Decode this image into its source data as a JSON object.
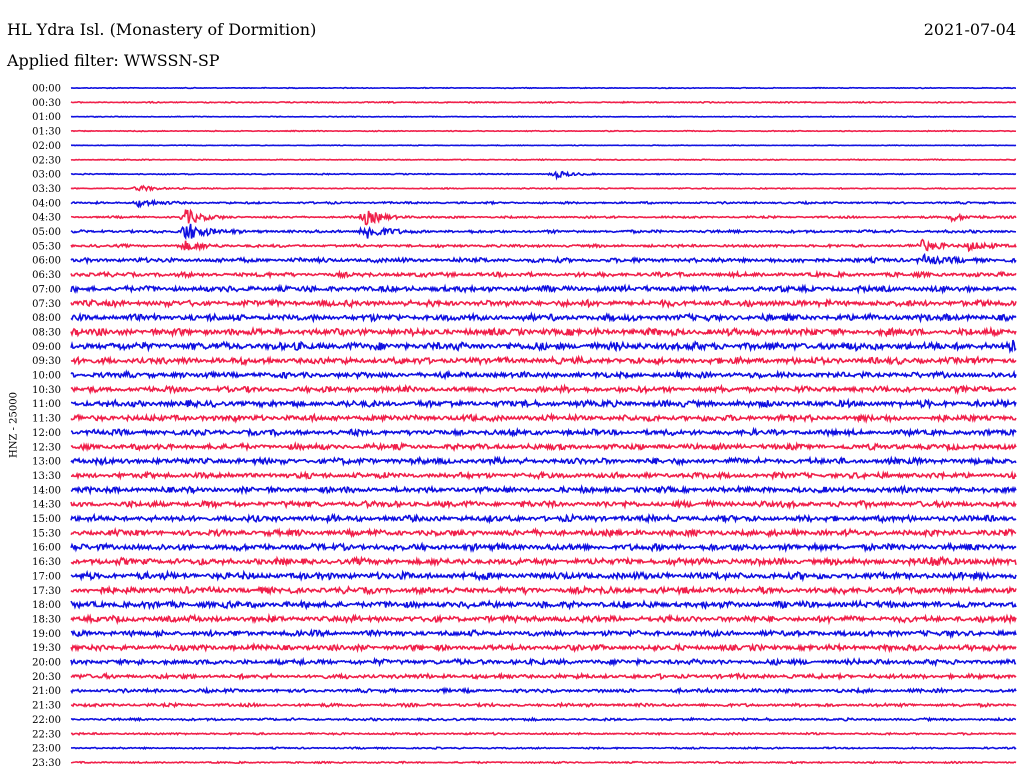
{
  "header": {
    "station": "HL Ydra Isl. (Monastery of Dormition)",
    "date": "2021-07-04",
    "filter": "Applied filter: WWSSN-SP"
  },
  "chart_data": {
    "type": "line",
    "title": "HL Ydra Isl. (Monastery of Dormition)",
    "ylabel": "HNZ - 25000",
    "xlabel": "",
    "row_labels": [
      "00:00",
      "00:30",
      "01:00",
      "01:30",
      "02:00",
      "02:30",
      "03:00",
      "03:30",
      "04:00",
      "04:30",
      "05:00",
      "05:30",
      "06:00",
      "06:30",
      "07:00",
      "07:30",
      "08:00",
      "08:30",
      "09:00",
      "09:30",
      "10:00",
      "10:30",
      "11:00",
      "11:30",
      "12:00",
      "12:30",
      "13:00",
      "13:30",
      "14:00",
      "14:30",
      "15:00",
      "15:30",
      "16:00",
      "16:30",
      "17:00",
      "17:30",
      "18:00",
      "18:30",
      "19:00",
      "19:30",
      "20:00",
      "20:30",
      "21:00",
      "21:30",
      "22:00",
      "22:30",
      "23:00",
      "23:30"
    ],
    "row_colors": [
      "#1010e0",
      "#f0204a"
    ],
    "noise_level": [
      0.1,
      0.15,
      0.1,
      0.12,
      0.08,
      0.12,
      0.14,
      0.14,
      0.25,
      0.25,
      0.35,
      0.35,
      0.55,
      0.55,
      0.7,
      0.75,
      0.8,
      0.85,
      0.95,
      0.8,
      0.7,
      0.7,
      0.8,
      0.75,
      0.7,
      0.7,
      0.75,
      0.7,
      0.7,
      0.75,
      0.75,
      0.75,
      0.8,
      0.8,
      0.85,
      0.8,
      0.8,
      0.75,
      0.7,
      0.7,
      0.65,
      0.55,
      0.45,
      0.4,
      0.3,
      0.25,
      0.2,
      0.2
    ],
    "events": [
      {
        "row": 7,
        "pos": 0.07,
        "amp": 1.0
      },
      {
        "row": 8,
        "pos": 0.07,
        "amp": 1.2
      },
      {
        "row": 9,
        "pos": 0.12,
        "amp": 2.5
      },
      {
        "row": 10,
        "pos": 0.12,
        "amp": 3.5
      },
      {
        "row": 11,
        "pos": 0.12,
        "amp": 1.5
      },
      {
        "row": 9,
        "pos": 0.31,
        "amp": 2.5
      },
      {
        "row": 10,
        "pos": 0.31,
        "amp": 3.0
      },
      {
        "row": 6,
        "pos": 0.51,
        "amp": 1.2
      },
      {
        "row": 11,
        "pos": 0.9,
        "amp": 1.8
      },
      {
        "row": 12,
        "pos": 0.9,
        "amp": 1.5
      },
      {
        "row": 9,
        "pos": 0.93,
        "amp": 1.2
      },
      {
        "row": 11,
        "pos": 0.95,
        "amp": 1.4
      },
      {
        "row": 18,
        "pos": 0.99,
        "amp": 1.2
      },
      {
        "row": 33,
        "pos": 0.91,
        "amp": 1.3
      }
    ]
  }
}
